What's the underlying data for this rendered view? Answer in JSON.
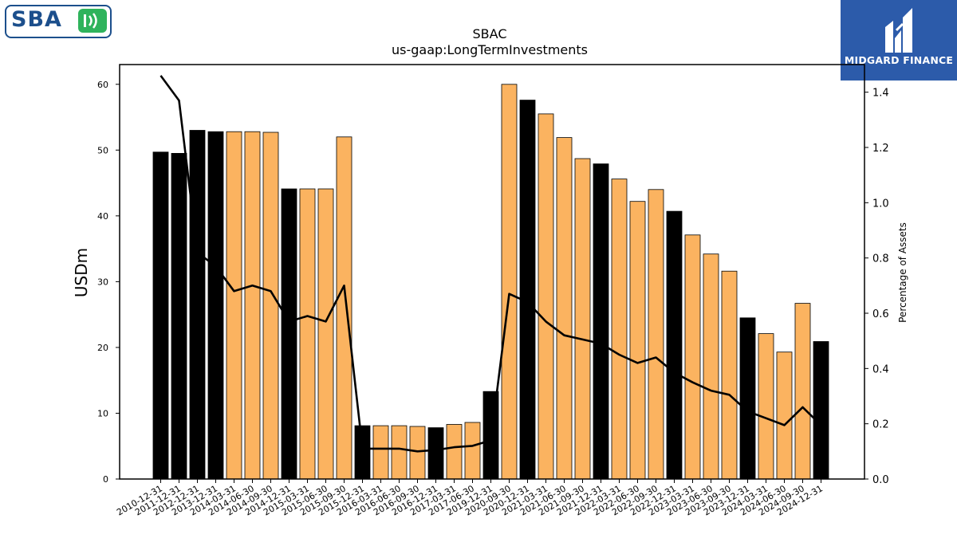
{
  "brand": {
    "left_logo_text": "SBA",
    "right_logo_text": "MIDGARD FINANCE"
  },
  "chart_data": {
    "type": "bar",
    "title": "SBAC",
    "subtitle": "us-gaap:LongTermInvestments",
    "ylabel": "USDm",
    "y2label": "Percentage of Assets",
    "ylim": [
      0,
      63
    ],
    "y2lim": [
      0,
      1.5
    ],
    "yticks": [
      0,
      10,
      20,
      30,
      40,
      50,
      60
    ],
    "y2ticks": [
      0.0,
      0.2,
      0.4,
      0.6,
      0.8,
      1.0,
      1.2,
      1.4
    ],
    "categories": [
      "2010-12-31",
      "2011-12-31",
      "2012-12-31",
      "2013-12-31",
      "2014-03-31",
      "2014-06-30",
      "2014-09-30",
      "2014-12-31",
      "2015-03-31",
      "2015-06-30",
      "2015-09-30",
      "2015-12-31",
      "2016-03-31",
      "2016-06-30",
      "2016-09-30",
      "2016-12-31",
      "2017-03-31",
      "2017-06-30",
      "2019-12-31",
      "2020-09-30",
      "2020-12-31",
      "2021-03-31",
      "2021-06-30",
      "2021-09-30",
      "2021-12-31",
      "2022-03-31",
      "2022-06-30",
      "2022-09-30",
      "2022-12-31",
      "2023-03-31",
      "2023-06-30",
      "2023-09-30",
      "2023-12-31",
      "2024-03-31",
      "2024-06-30",
      "2024-09-30",
      "2024-12-31"
    ],
    "series": [
      {
        "kind": "bar",
        "values": [
          49.7,
          49.5,
          53.0,
          52.8,
          52.8,
          52.8,
          52.7,
          44.1,
          44.1,
          44.1,
          52.0,
          8.1,
          8.1,
          8.1,
          8.0,
          7.8,
          8.3,
          8.6,
          13.3,
          60.0,
          57.6,
          55.5,
          51.9,
          48.7,
          47.9,
          45.6,
          42.2,
          44.0,
          40.7,
          37.1,
          34.2,
          31.6,
          24.5,
          22.1,
          19.3,
          26.7,
          20.9
        ],
        "period": [
          "FY",
          "FY",
          "FY",
          "FY",
          "Q",
          "Q",
          "Q",
          "FY",
          "Q",
          "Q",
          "Q",
          "FY",
          "Q",
          "Q",
          "Q",
          "FY",
          "Q",
          "Q",
          "FY",
          "Q",
          "FY",
          "Q",
          "Q",
          "Q",
          "FY",
          "Q",
          "Q",
          "Q",
          "FY",
          "Q",
          "Q",
          "Q",
          "FY",
          "Q",
          "Q",
          "Q",
          "FY"
        ],
        "colors": {
          "FY": "#000000",
          "Q": "#fbb360"
        }
      },
      {
        "kind": "line",
        "axis": "right",
        "color": "#000000",
        "values": [
          1.46,
          1.37,
          0.82,
          0.77,
          0.68,
          0.7,
          0.68,
          0.57,
          0.59,
          0.57,
          0.7,
          0.11,
          0.11,
          0.11,
          0.1,
          0.105,
          0.115,
          0.12,
          0.14,
          0.67,
          0.64,
          0.57,
          0.52,
          0.505,
          0.49,
          0.45,
          0.42,
          0.44,
          0.385,
          0.35,
          0.32,
          0.305,
          0.245,
          0.22,
          0.195,
          0.26,
          0.195
        ]
      }
    ]
  }
}
